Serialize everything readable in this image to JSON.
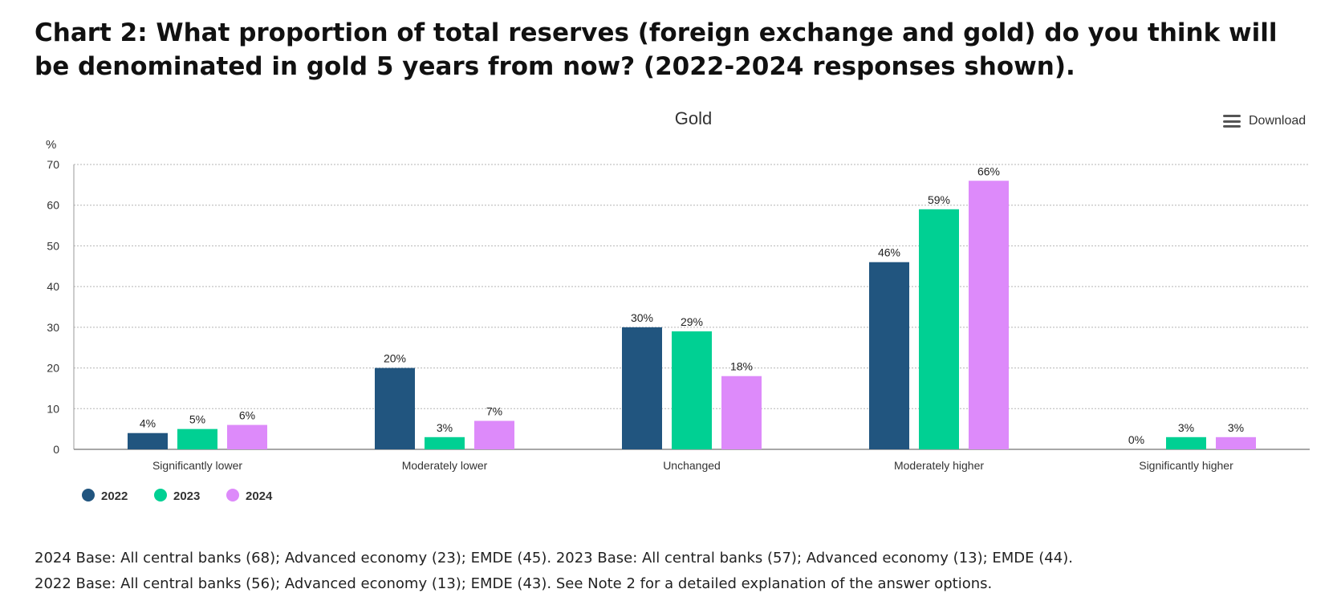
{
  "page": {
    "heading": "Chart 2: What proportion of total reserves (foreign exchange and gold) do you think will be denominated in gold 5 years from now? (2022-2024 responses shown).",
    "download_label": "Download",
    "download_icon": "menu-icon",
    "notes": [
      "2024 Base: All central banks (68); Advanced economy (23); EMDE (45). 2023 Base: All central banks (57); Advanced economy (13); EMDE (44).",
      "2022 Base: All central banks (56); Advanced economy (13); EMDE (43). See Note 2 for a detailed explanation of the answer options."
    ]
  },
  "chart_data": {
    "type": "bar",
    "title": "Gold",
    "ylabel": "%",
    "xlabel": "",
    "ylim": [
      0,
      70
    ],
    "yticks": [
      0,
      10,
      20,
      30,
      40,
      50,
      60,
      70
    ],
    "grid": true,
    "legend_position": "bottom-left",
    "categories": [
      "Significantly lower",
      "Moderately lower",
      "Unchanged",
      "Moderately higher",
      "Significantly higher"
    ],
    "series": [
      {
        "name": "2022",
        "color": "#21557f",
        "values": [
          4,
          20,
          30,
          46,
          0
        ]
      },
      {
        "name": "2023",
        "color": "#00d093",
        "values": [
          5,
          3,
          29,
          59,
          3
        ]
      },
      {
        "name": "2024",
        "color": "#dd8afa",
        "values": [
          6,
          7,
          18,
          66,
          3
        ]
      }
    ],
    "data_label_suffix": "%"
  }
}
